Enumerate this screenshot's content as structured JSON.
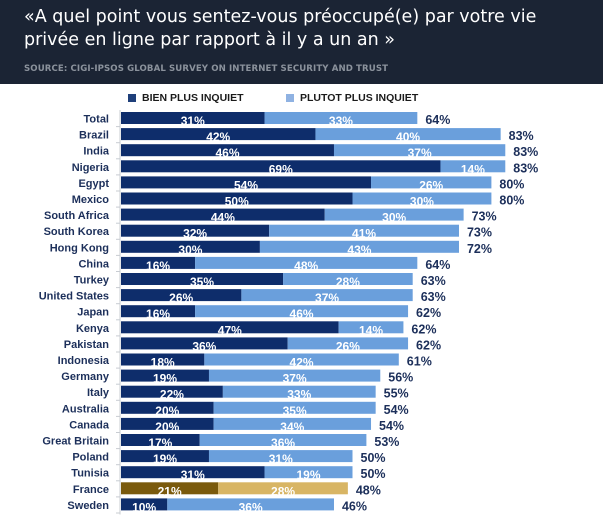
{
  "header": {
    "title": "«A quel point vous sentez-vous préoccupé(e) par votre vie privée en ligne par rapport à il y a un an »",
    "source": "SOURCE: CIGI-IPSOS GLOBAL SURVEY ON INTERNET SECURITY AND TRUST"
  },
  "colors": {
    "header_bg": "#1b2434",
    "series1": "#0e2d6b",
    "series2": "#6a9fdc",
    "highlight1": "#7a5a0d",
    "highlight2": "#d8b564",
    "label_dark": "#1c2f5a",
    "label_highlight": "#5a4a10"
  },
  "chart_data": {
    "type": "bar",
    "orientation": "horizontal",
    "stacked": true,
    "title": "«A quel point vous sentez-vous préoccupé(e) par votre vie privée en ligne par rapport à il y a un an »",
    "xlabel": "",
    "ylabel": "",
    "xlim": [
      0,
      100
    ],
    "grid": false,
    "legend_position": "top",
    "categories": [
      "Total",
      "Brazil",
      "India",
      "Nigeria",
      "Egypt",
      "Mexico",
      "South Africa",
      "South Korea",
      "Hong Kong",
      "China",
      "Turkey",
      "United States",
      "Japan",
      "Kenya",
      "Pakistan",
      "Indonesia",
      "Germany",
      "Italy",
      "Australia",
      "Canada",
      "Great Britain",
      "Poland",
      "Tunisia",
      "France",
      "Sweden"
    ],
    "series": [
      {
        "name": "BIEN PLUS INQUIET",
        "values": [
          31,
          42,
          46,
          69,
          54,
          50,
          44,
          32,
          30,
          16,
          35,
          26,
          16,
          47,
          36,
          18,
          19,
          22,
          20,
          20,
          17,
          19,
          31,
          21,
          10
        ]
      },
      {
        "name": "PLUTOT PLUS INQUIET",
        "values": [
          33,
          40,
          37,
          14,
          26,
          30,
          30,
          41,
          43,
          48,
          28,
          37,
          46,
          14,
          26,
          42,
          37,
          33,
          35,
          34,
          36,
          31,
          19,
          28,
          36
        ]
      }
    ],
    "totals": [
      64,
      83,
      83,
      83,
      80,
      80,
      73,
      73,
      72,
      64,
      63,
      63,
      62,
      62,
      62,
      61,
      56,
      55,
      54,
      54,
      53,
      50,
      50,
      48,
      46
    ],
    "highlighted_category": "France"
  }
}
